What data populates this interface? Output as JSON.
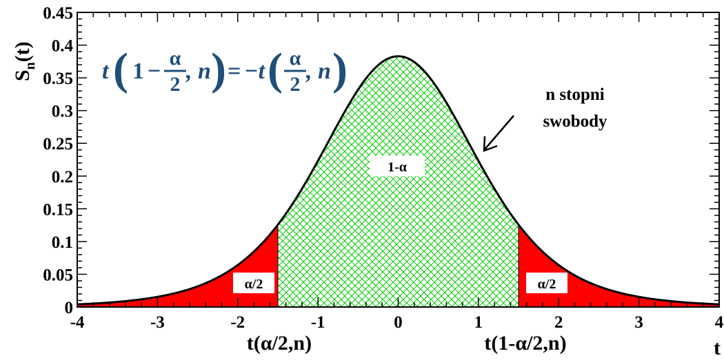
{
  "chart_data": {
    "type": "area",
    "title": "",
    "xlabel": "t",
    "ylabel": "S",
    "ylabel_sub": "n",
    "ylabel_arg": "(t)",
    "xlim": [
      -4,
      4
    ],
    "ylim": [
      0,
      0.45
    ],
    "x_ticks": [
      -4,
      -3,
      -2,
      -1,
      0,
      1,
      2,
      3,
      4
    ],
    "x_tick_labels": [
      "-4",
      "-3",
      "-2",
      "-1",
      "0",
      "1",
      "2",
      "3",
      "4"
    ],
    "y_ticks": [
      0,
      0.05,
      0.1,
      0.15,
      0.2,
      0.25,
      0.3,
      0.35,
      0.4,
      0.45
    ],
    "y_tick_labels": [
      "0",
      "0.05",
      "0.1",
      "0.15",
      "0.2",
      "0.25",
      "0.3",
      "0.35",
      "0.4",
      "0.45"
    ],
    "grid": false,
    "curve": {
      "distribution": "student-t",
      "degrees_of_freedom": 6,
      "peak_value": 0.383
    },
    "critical_values": [
      -1.5,
      1.5
    ],
    "critical_labels": [
      "t(α/2,n)",
      "t(1-α/2,n)"
    ],
    "regions": [
      {
        "label": "α/2",
        "from": -4,
        "to": -1.5,
        "color": "#ff0000",
        "fill": "solid"
      },
      {
        "label": "1-α",
        "from": -1.5,
        "to": 1.5,
        "color": "#00cc00",
        "fill": "crosshatch"
      },
      {
        "label": "α/2",
        "from": 1.5,
        "to": 4,
        "color": "#ff0000",
        "fill": "solid"
      }
    ],
    "annotations": {
      "curve_label_line1": "n stopni",
      "curve_label_line2": "swobody"
    },
    "formula": {
      "t1": "t",
      "one": "1",
      "minus": "−",
      "alpha_num": "α",
      "two_den": "2",
      "comma_n": ", n",
      "equals": "=",
      "neg_t": "−t",
      "alpha_num2": "α",
      "two_den2": "2",
      "comma_n2": ", n"
    },
    "colors": {
      "curve": "#000000",
      "tail_fill": "#ff0000",
      "center_hatch": "#00cc00",
      "formula": "#1f4e79"
    }
  }
}
